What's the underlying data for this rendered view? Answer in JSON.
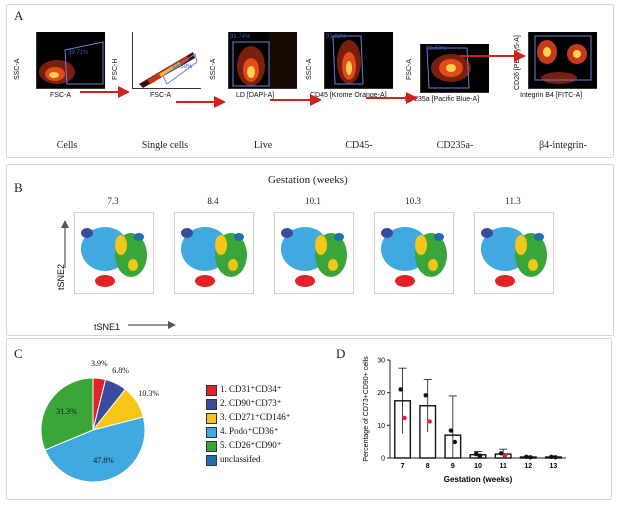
{
  "panels": {
    "a_letter": "A",
    "b_letter": "B",
    "c_letter": "C",
    "d_letter": "D"
  },
  "gating": [
    {
      "ylabel": "SSC-A",
      "xlabel": "FSC-A",
      "pct": "39.71%",
      "name": "Cells"
    },
    {
      "ylabel": "FSC-H",
      "xlabel": "FSC-A",
      "pct": "93.39%",
      "name": "Single cells"
    },
    {
      "ylabel": "SSC-A",
      "xlabel": "LD [DAPI-A]",
      "pct": "91.74%",
      "name": "Live"
    },
    {
      "ylabel": "SSC-A",
      "xlabel": "CD45 [Krome Orange-A]",
      "pct": "91.83%",
      "name": "CD45-"
    },
    {
      "ylabel": "FSC-A",
      "xlabel": "CD235a [Pacific Blue-A]",
      "pct": "98.60%",
      "name": "CD235a-"
    },
    {
      "ylabel": "CD26 [PE-Cy5-A]",
      "xlabel": "Integrin B4 [FITC-A]",
      "pct": "",
      "name": "β4-integrin-"
    }
  ],
  "tsne": {
    "title": "Gestation (weeks)",
    "weeks": [
      "7.3",
      "8.4",
      "10.1",
      "10.3",
      "11.3"
    ],
    "ylabel": "tSNE2",
    "xlabel": "tSNE1"
  },
  "colors": {
    "red": "#e32227",
    "navy": "#3a4a9c",
    "yellow": "#f5c518",
    "lightblue": "#3fa9e0",
    "green": "#3aa63a",
    "darkblue": "#1f6fae"
  },
  "legend": [
    {
      "label": "1. CD31⁺CD34⁺",
      "color": "#e32227"
    },
    {
      "label": "2. CD90⁺CD73⁺",
      "color": "#3a4a9c"
    },
    {
      "label": "3. CD271⁺CD146⁺",
      "color": "#f5c518"
    },
    {
      "label": "4. Podo⁺CD36⁺",
      "color": "#3fa9e0"
    },
    {
      "label": "5. CD26⁺CD90⁺",
      "color": "#3aa63a"
    },
    {
      "label": "unclassifed",
      "color": "#1f6fae"
    }
  ],
  "chart_data": [
    {
      "type": "pie",
      "slices": [
        {
          "label": "3.9%",
          "value": 3.9,
          "color": "#e32227"
        },
        {
          "label": "6.8%",
          "value": 6.8,
          "color": "#3a4a9c"
        },
        {
          "label": "10.3%",
          "value": 10.3,
          "color": "#f5c518"
        },
        {
          "label": "47.8%",
          "value": 47.8,
          "color": "#3fa9e0"
        },
        {
          "label": "31.3%",
          "value": 31.3,
          "color": "#3aa63a"
        }
      ]
    },
    {
      "type": "bar",
      "categories": [
        "7",
        "8",
        "9",
        "10",
        "11",
        "12",
        "13"
      ],
      "values": [
        17.5,
        16,
        7,
        1,
        1.2,
        0.3,
        0.3
      ],
      "errors": [
        10,
        8,
        12,
        1,
        1.5,
        0.3,
        0.3
      ],
      "xlabel": "Gestation (weeks)",
      "ylabel": "Percentage of CD73+CD90+ cells",
      "ylim": [
        0,
        30
      ],
      "yticks": [
        "0",
        "10",
        "20",
        "30"
      ]
    }
  ]
}
